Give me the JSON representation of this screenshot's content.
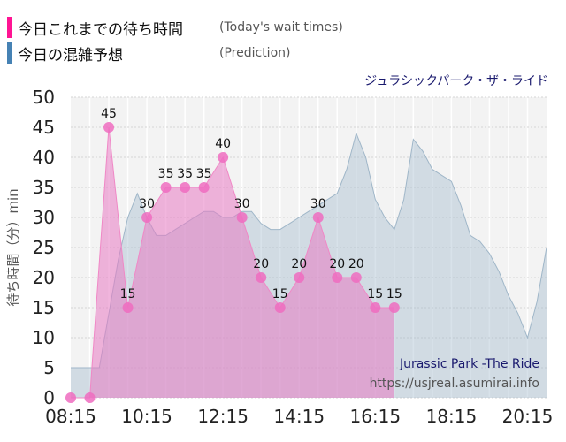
{
  "legend": {
    "today": {
      "label": "今日これまでの待ち時間",
      "en": "(Today's wait times)",
      "color": "#ff1493"
    },
    "prediction": {
      "label": "今日の混雑予想",
      "en": "(Prediction)",
      "color": "#4682b4"
    }
  },
  "chart_data": {
    "type": "area",
    "title": "ジュラシックパーク・ザ・ライド",
    "ylabel": "待ち時間（分）min",
    "ylim": [
      0,
      50
    ],
    "yticks": [
      0,
      5,
      10,
      15,
      20,
      25,
      30,
      35,
      40,
      45,
      50
    ],
    "xlim": [
      "08:15",
      "20:45"
    ],
    "xticks": [
      "08:15",
      "10:15",
      "12:15",
      "14:15",
      "16:15",
      "18:15",
      "20:15"
    ],
    "grid": true,
    "watermark": {
      "line1": "Jurassic Park -The Ride",
      "line2": "https://usjreal.asumirai.info"
    },
    "series": [
      {
        "name": "今日の混雑予想",
        "color": "#a8bfd0",
        "x": [
          "08:15",
          "08:45",
          "09:00",
          "09:15",
          "09:30",
          "09:45",
          "10:00",
          "10:15",
          "10:30",
          "10:45",
          "11:00",
          "11:15",
          "11:30",
          "11:45",
          "12:00",
          "12:15",
          "12:30",
          "12:45",
          "13:00",
          "13:15",
          "13:30",
          "13:45",
          "14:00",
          "14:15",
          "14:30",
          "14:45",
          "15:00",
          "15:15",
          "15:30",
          "15:45",
          "16:00",
          "16:15",
          "16:30",
          "16:45",
          "17:00",
          "17:15",
          "17:30",
          "17:45",
          "18:00",
          "18:15",
          "18:30",
          "18:45",
          "19:00",
          "19:15",
          "19:30",
          "19:45",
          "20:00",
          "20:15",
          "20:30",
          "20:45"
        ],
        "values": [
          5,
          5,
          5,
          14,
          23,
          30,
          34,
          30,
          27,
          27,
          28,
          29,
          30,
          31,
          31,
          30,
          30,
          31,
          31,
          29,
          28,
          28,
          29,
          30,
          31,
          32,
          33,
          34,
          38,
          44,
          40,
          33,
          30,
          28,
          33,
          43,
          41,
          38,
          37,
          36,
          32,
          27,
          26,
          24,
          21,
          17,
          14,
          10,
          16,
          25
        ]
      },
      {
        "name": "今日これまでの待ち時間",
        "color": "#e77ac2",
        "x": [
          "08:15",
          "08:45",
          "09:15",
          "09:45",
          "10:15",
          "10:45",
          "11:15",
          "11:45",
          "12:15",
          "12:45",
          "13:15",
          "13:45",
          "14:15",
          "14:45",
          "15:15",
          "15:45",
          "16:15",
          "16:45"
        ],
        "values": [
          0,
          0,
          45,
          15,
          30,
          35,
          35,
          35,
          40,
          30,
          20,
          15,
          20,
          30,
          20,
          20,
          15,
          15
        ]
      }
    ]
  }
}
